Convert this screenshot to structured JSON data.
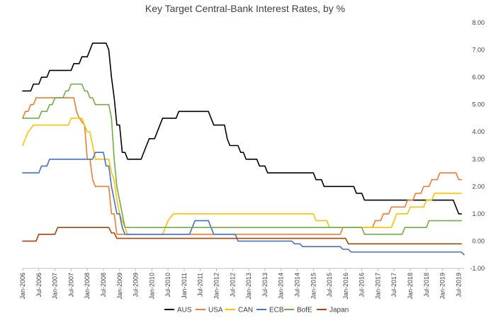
{
  "chart_data": {
    "type": "line",
    "title": "Key Target Central-Bank Interest Rates, by %",
    "xlabel": "",
    "ylabel": "",
    "ylim": [
      -1,
      8
    ],
    "y_ticks": [
      "8.00",
      "7.00",
      "6.00",
      "5.00",
      "4.00",
      "3.00",
      "2.00",
      "1.00",
      "0.00",
      "-1.00"
    ],
    "y_axis_side": "right",
    "grid": false,
    "legend_position": "bottom",
    "x_ticks": [
      "Jan-2006",
      "Jul-2006",
      "Jan-2007",
      "Jul-2007",
      "Jan-2008",
      "Jul-2008",
      "Jan-2009",
      "Jul-2009",
      "Jan-2010",
      "Jul-2010",
      "Jan-2011",
      "Jul-2011",
      "Jan-2012",
      "Jul-2012",
      "Jan-2013",
      "Jul-2013",
      "Jan-2014",
      "Jul-2014",
      "Jan-2015",
      "Jul-2015",
      "Jan-2016",
      "Jul-2016",
      "Jan-2017",
      "Jul-2017",
      "Jan-2018",
      "Jul-2018",
      "Jan-2019",
      "Jul-2019"
    ],
    "series": [
      {
        "name": "AUS",
        "color": "#000000",
        "points": [
          [
            "2006-01",
            5.5
          ],
          [
            "2006-04",
            5.5
          ],
          [
            "2006-05",
            5.75
          ],
          [
            "2006-07",
            5.75
          ],
          [
            "2006-08",
            6.0
          ],
          [
            "2006-10",
            6.0
          ],
          [
            "2006-11",
            6.25
          ],
          [
            "2007-07",
            6.25
          ],
          [
            "2007-08",
            6.5
          ],
          [
            "2007-10",
            6.5
          ],
          [
            "2007-11",
            6.75
          ],
          [
            "2008-01",
            6.75
          ],
          [
            "2008-02",
            7.0
          ],
          [
            "2008-03",
            7.25
          ],
          [
            "2008-08",
            7.25
          ],
          [
            "2008-09",
            7.0
          ],
          [
            "2008-10",
            6.0
          ],
          [
            "2008-11",
            5.25
          ],
          [
            "2008-12",
            4.25
          ],
          [
            "2009-01",
            4.25
          ],
          [
            "2009-02",
            3.25
          ],
          [
            "2009-03",
            3.25
          ],
          [
            "2009-04",
            3.0
          ],
          [
            "2009-09",
            3.0
          ],
          [
            "2009-10",
            3.25
          ],
          [
            "2009-11",
            3.5
          ],
          [
            "2009-12",
            3.75
          ],
          [
            "2010-02",
            3.75
          ],
          [
            "2010-03",
            4.0
          ],
          [
            "2010-04",
            4.25
          ],
          [
            "2010-05",
            4.5
          ],
          [
            "2010-10",
            4.5
          ],
          [
            "2010-11",
            4.75
          ],
          [
            "2011-10",
            4.75
          ],
          [
            "2011-11",
            4.5
          ],
          [
            "2011-12",
            4.25
          ],
          [
            "2012-04",
            4.25
          ],
          [
            "2012-05",
            3.75
          ],
          [
            "2012-06",
            3.5
          ],
          [
            "2012-09",
            3.5
          ],
          [
            "2012-10",
            3.25
          ],
          [
            "2012-11",
            3.25
          ],
          [
            "2012-12",
            3.0
          ],
          [
            "2013-04",
            3.0
          ],
          [
            "2013-05",
            2.75
          ],
          [
            "2013-07",
            2.75
          ],
          [
            "2013-08",
            2.5
          ],
          [
            "2015-01",
            2.5
          ],
          [
            "2015-02",
            2.25
          ],
          [
            "2015-04",
            2.25
          ],
          [
            "2015-05",
            2.0
          ],
          [
            "2016-04",
            2.0
          ],
          [
            "2016-05",
            1.75
          ],
          [
            "2016-07",
            1.75
          ],
          [
            "2016-08",
            1.5
          ],
          [
            "2019-05",
            1.5
          ],
          [
            "2019-06",
            1.25
          ],
          [
            "2019-07",
            1.0
          ],
          [
            "2019-08",
            1.0
          ]
        ]
      },
      {
        "name": "USA",
        "color": "#ED7D31",
        "points": [
          [
            "2006-01",
            4.5
          ],
          [
            "2006-02",
            4.75
          ],
          [
            "2006-03",
            4.75
          ],
          [
            "2006-04",
            5.0
          ],
          [
            "2006-05",
            5.0
          ],
          [
            "2006-06",
            5.25
          ],
          [
            "2007-08",
            5.25
          ],
          [
            "2007-09",
            4.75
          ],
          [
            "2007-10",
            4.5
          ],
          [
            "2007-12",
            4.25
          ],
          [
            "2008-01",
            3.0
          ],
          [
            "2008-02",
            3.0
          ],
          [
            "2008-03",
            2.25
          ],
          [
            "2008-04",
            2.0
          ],
          [
            "2008-09",
            2.0
          ],
          [
            "2008-10",
            1.0
          ],
          [
            "2008-11",
            1.0
          ],
          [
            "2008-12",
            0.25
          ],
          [
            "2015-11",
            0.25
          ],
          [
            "2015-12",
            0.5
          ],
          [
            "2016-11",
            0.5
          ],
          [
            "2016-12",
            0.75
          ],
          [
            "2017-02",
            0.75
          ],
          [
            "2017-03",
            1.0
          ],
          [
            "2017-05",
            1.0
          ],
          [
            "2017-06",
            1.25
          ],
          [
            "2017-11",
            1.25
          ],
          [
            "2017-12",
            1.5
          ],
          [
            "2018-02",
            1.5
          ],
          [
            "2018-03",
            1.75
          ],
          [
            "2018-05",
            1.75
          ],
          [
            "2018-06",
            2.0
          ],
          [
            "2018-08",
            2.0
          ],
          [
            "2018-09",
            2.25
          ],
          [
            "2018-11",
            2.25
          ],
          [
            "2018-12",
            2.5
          ],
          [
            "2019-06",
            2.5
          ],
          [
            "2019-07",
            2.25
          ],
          [
            "2019-08",
            2.25
          ]
        ]
      },
      {
        "name": "CAN",
        "color": "#FFC000",
        "points": [
          [
            "2006-01",
            3.5
          ],
          [
            "2006-02",
            3.75
          ],
          [
            "2006-03",
            4.0
          ],
          [
            "2006-05",
            4.25
          ],
          [
            "2007-06",
            4.25
          ],
          [
            "2007-07",
            4.5
          ],
          [
            "2007-11",
            4.5
          ],
          [
            "2007-12",
            4.25
          ],
          [
            "2008-01",
            4.0
          ],
          [
            "2008-02",
            4.0
          ],
          [
            "2008-03",
            3.5
          ],
          [
            "2008-04",
            3.0
          ],
          [
            "2008-05",
            3.0
          ],
          [
            "2008-06",
            3.0
          ],
          [
            "2008-09",
            3.0
          ],
          [
            "2008-10",
            2.5
          ],
          [
            "2008-11",
            2.25
          ],
          [
            "2008-12",
            1.5
          ],
          [
            "2009-01",
            1.0
          ],
          [
            "2009-03",
            0.5
          ],
          [
            "2009-04",
            0.25
          ],
          [
            "2010-05",
            0.25
          ],
          [
            "2010-06",
            0.5
          ],
          [
            "2010-07",
            0.75
          ],
          [
            "2010-09",
            1.0
          ],
          [
            "2015-01",
            1.0
          ],
          [
            "2015-02",
            0.75
          ],
          [
            "2015-06",
            0.75
          ],
          [
            "2015-07",
            0.5
          ],
          [
            "2017-06",
            0.5
          ],
          [
            "2017-07",
            0.75
          ],
          [
            "2017-08",
            1.0
          ],
          [
            "2017-12",
            1.0
          ],
          [
            "2018-01",
            1.25
          ],
          [
            "2018-06",
            1.25
          ],
          [
            "2018-07",
            1.5
          ],
          [
            "2018-09",
            1.5
          ],
          [
            "2018-10",
            1.75
          ],
          [
            "2019-08",
            1.75
          ]
        ]
      },
      {
        "name": "ECB",
        "color": "#4472C4",
        "points": [
          [
            "2006-01",
            2.5
          ],
          [
            "2006-07",
            2.5
          ],
          [
            "2006-08",
            2.75
          ],
          [
            "2006-10",
            2.75
          ],
          [
            "2006-11",
            3.0
          ],
          [
            "2008-03",
            3.0
          ],
          [
            "2008-04",
            3.25
          ],
          [
            "2008-07",
            3.25
          ],
          [
            "2008-08",
            2.75
          ],
          [
            "2008-09",
            2.75
          ],
          [
            "2008-10",
            2.0
          ],
          [
            "2008-12",
            1.0
          ],
          [
            "2009-01",
            1.0
          ],
          [
            "2009-02",
            0.5
          ],
          [
            "2009-03",
            0.25
          ],
          [
            "2011-03",
            0.25
          ],
          [
            "2011-04",
            0.5
          ],
          [
            "2011-05",
            0.75
          ],
          [
            "2011-10",
            0.75
          ],
          [
            "2011-11",
            0.5
          ],
          [
            "2011-12",
            0.25
          ],
          [
            "2012-08",
            0.25
          ],
          [
            "2012-09",
            0.0
          ],
          [
            "2014-05",
            0.0
          ],
          [
            "2014-06",
            -0.1
          ],
          [
            "2014-08",
            -0.1
          ],
          [
            "2014-09",
            -0.2
          ],
          [
            "2015-11",
            -0.2
          ],
          [
            "2015-12",
            -0.3
          ],
          [
            "2016-02",
            -0.3
          ],
          [
            "2016-03",
            -0.4
          ],
          [
            "2019-08",
            -0.4
          ],
          [
            "2019-09",
            -0.5
          ]
        ]
      },
      {
        "name": "BofE",
        "color": "#70AD47",
        "points": [
          [
            "2006-01",
            4.5
          ],
          [
            "2006-07",
            4.5
          ],
          [
            "2006-08",
            4.75
          ],
          [
            "2006-10",
            4.75
          ],
          [
            "2006-11",
            5.0
          ],
          [
            "2006-12",
            5.0
          ],
          [
            "2007-01",
            5.25
          ],
          [
            "2007-04",
            5.25
          ],
          [
            "2007-05",
            5.5
          ],
          [
            "2007-06",
            5.5
          ],
          [
            "2007-07",
            5.75
          ],
          [
            "2007-11",
            5.75
          ],
          [
            "2007-12",
            5.5
          ],
          [
            "2008-01",
            5.5
          ],
          [
            "2008-02",
            5.25
          ],
          [
            "2008-03",
            5.25
          ],
          [
            "2008-04",
            5.0
          ],
          [
            "2008-09",
            5.0
          ],
          [
            "2008-10",
            4.5
          ],
          [
            "2008-11",
            3.0
          ],
          [
            "2008-12",
            2.0
          ],
          [
            "2009-01",
            1.5
          ],
          [
            "2009-02",
            1.0
          ],
          [
            "2009-03",
            0.5
          ],
          [
            "2016-07",
            0.5
          ],
          [
            "2016-08",
            0.25
          ],
          [
            "2017-10",
            0.25
          ],
          [
            "2017-11",
            0.5
          ],
          [
            "2018-07",
            0.5
          ],
          [
            "2018-08",
            0.75
          ],
          [
            "2019-08",
            0.75
          ]
        ]
      },
      {
        "name": "Japan",
        "color": "#9E480E",
        "points": [
          [
            "2006-01",
            0.0
          ],
          [
            "2006-06",
            0.0
          ],
          [
            "2006-07",
            0.25
          ],
          [
            "2007-01",
            0.25
          ],
          [
            "2007-02",
            0.5
          ],
          [
            "2008-09",
            0.5
          ],
          [
            "2008-10",
            0.3
          ],
          [
            "2008-11",
            0.3
          ],
          [
            "2008-12",
            0.1
          ],
          [
            "2016-01",
            0.1
          ],
          [
            "2016-02",
            -0.1
          ],
          [
            "2019-08",
            -0.1
          ]
        ]
      }
    ]
  }
}
